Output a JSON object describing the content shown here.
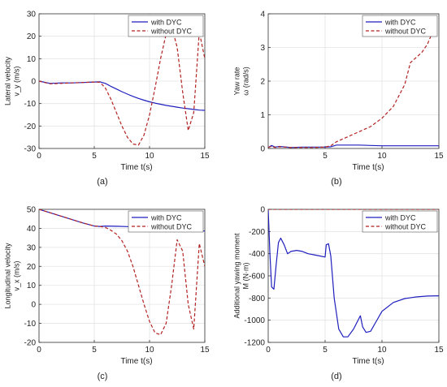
{
  "figure": {
    "colors": {
      "with": "#1f1fbf",
      "without": "#b22222",
      "axis": "#333333",
      "grid": "#e4e4e4"
    }
  },
  "chart_data": [
    {
      "id": "a",
      "type": "line",
      "caption": "(a)",
      "xlabel": "Time t(s)",
      "ylabel": [
        "Lateral velocity",
        "v_y (m/s)"
      ],
      "xlim": [
        0,
        15
      ],
      "ylim": [
        -30,
        30
      ],
      "xticks": [
        0,
        5,
        10,
        15
      ],
      "yticks": [
        -30,
        -20,
        -10,
        0,
        10,
        20,
        30
      ],
      "legend_position": "top-right",
      "grid": true,
      "series": [
        {
          "name": "with DYC",
          "style": "solid",
          "x": [
            0,
            1,
            2,
            3,
            4,
            5,
            5.5,
            6,
            6.5,
            7,
            7.5,
            8,
            8.5,
            9,
            9.5,
            10,
            10.5,
            11,
            11.5,
            12,
            12.5,
            13,
            13.5,
            14,
            14.5,
            15
          ],
          "y": [
            0,
            -1,
            -0.8,
            -0.8,
            -0.6,
            -0.4,
            -0.3,
            -1,
            -2.3,
            -3.5,
            -4.7,
            -5.8,
            -6.8,
            -7.7,
            -8.5,
            -9.2,
            -9.8,
            -10.3,
            -10.8,
            -11.2,
            -11.6,
            -12,
            -12.3,
            -12.6,
            -12.9,
            -13
          ]
        },
        {
          "name": "without DYC",
          "style": "dashed",
          "x": [
            0,
            1,
            2,
            3,
            4,
            5,
            5.5,
            6,
            6.5,
            7,
            7.5,
            8,
            8.5,
            9,
            9.5,
            10,
            10.5,
            11,
            11.5,
            12,
            12.5,
            13,
            13.5,
            14,
            14.5,
            15
          ],
          "y": [
            0,
            -1.2,
            -1,
            -0.8,
            -0.6,
            -0.4,
            -0.5,
            -3,
            -8,
            -14,
            -20,
            -25,
            -28,
            -28.5,
            -24,
            -15,
            -3,
            10,
            21,
            24.5,
            15,
            -5,
            -22,
            -14,
            22,
            10
          ]
        }
      ]
    },
    {
      "id": "b",
      "type": "line",
      "caption": "(b)",
      "xlabel": "Time t(s)",
      "ylabel": [
        "Yaw rate",
        "ω (rad/s)"
      ],
      "xlim": [
        0,
        15
      ],
      "ylim": [
        0,
        4
      ],
      "xticks": [
        5,
        10,
        15
      ],
      "yticks": [
        0,
        1,
        2,
        3,
        4
      ],
      "legend_position": "top-right",
      "grid": true,
      "series": [
        {
          "name": "with DYC",
          "style": "solid",
          "x": [
            0,
            0.3,
            0.6,
            1,
            2,
            3,
            4,
            5,
            5.5,
            6,
            7,
            8,
            9,
            10,
            11,
            12,
            13,
            14,
            15
          ],
          "y": [
            0.03,
            0.09,
            0.04,
            0.06,
            0.03,
            0.04,
            0.04,
            0.04,
            0.05,
            0.1,
            0.1,
            0.1,
            0.09,
            0.08,
            0.08,
            0.08,
            0.08,
            0.08,
            0.08
          ]
        },
        {
          "name": "without DYC",
          "style": "dashed",
          "x": [
            0,
            0.3,
            0.6,
            1,
            2,
            3,
            4,
            5,
            5.5,
            6,
            7,
            8,
            9,
            10,
            11,
            12,
            12.5,
            13,
            13.5,
            14,
            14.5,
            15
          ],
          "y": [
            0.03,
            0.07,
            0.03,
            0.05,
            0.03,
            0.03,
            0.03,
            0.04,
            0.08,
            0.2,
            0.35,
            0.5,
            0.65,
            0.9,
            1.25,
            1.9,
            2.55,
            2.7,
            2.85,
            3.1,
            3.5,
            3.62
          ]
        }
      ]
    },
    {
      "id": "c",
      "type": "line",
      "caption": "(c)",
      "xlabel": "Time t(s)",
      "ylabel": [
        "Longitudinal velocity",
        "v_x (m/s)"
      ],
      "xlim": [
        0,
        15
      ],
      "ylim": [
        -20,
        50
      ],
      "xticks": [
        0,
        5,
        10,
        15
      ],
      "yticks": [
        -20,
        -10,
        0,
        10,
        20,
        30,
        40,
        50
      ],
      "legend_position": "top-right",
      "grid": true,
      "series": [
        {
          "name": "with DYC",
          "style": "solid",
          "x": [
            0,
            1,
            2,
            3,
            4,
            5,
            5.5,
            6,
            7,
            8,
            9,
            10,
            11,
            12,
            13,
            14,
            15
          ],
          "y": [
            50,
            48.2,
            46.4,
            44.6,
            42.8,
            41.2,
            41,
            41.2,
            41.1,
            40.9,
            40.6,
            40.3,
            40,
            39.6,
            39.3,
            38.9,
            38.6
          ]
        },
        {
          "name": "without DYC",
          "style": "dashed",
          "x": [
            0,
            1,
            2,
            3,
            4,
            5,
            5.5,
            6,
            6.5,
            7,
            7.5,
            8,
            8.5,
            9,
            9.5,
            10,
            10.5,
            11,
            11.5,
            12,
            12.5,
            13,
            13.5,
            14,
            14.5,
            15
          ],
          "y": [
            50,
            48.2,
            46.4,
            44.6,
            42.8,
            41.2,
            41,
            40.5,
            39,
            37,
            33.5,
            28,
            20,
            10,
            0,
            -9,
            -15,
            -16,
            -10,
            10,
            34,
            28,
            0,
            -13,
            32,
            20
          ]
        }
      ]
    },
    {
      "id": "d",
      "type": "line",
      "caption": "(d)",
      "xlabel": "Time t(s)",
      "ylabel": [
        "Additional yawing moment",
        "M (N·m)"
      ],
      "xlim": [
        0,
        15
      ],
      "ylim": [
        -1200,
        0
      ],
      "xticks": [
        0,
        5,
        10,
        15
      ],
      "yticks": [
        -1200,
        -1000,
        -800,
        -600,
        -400,
        -200,
        0
      ],
      "legend_position": "top-right",
      "grid": true,
      "series": [
        {
          "name": "with DYC",
          "style": "solid",
          "x": [
            0,
            0.15,
            0.3,
            0.5,
            0.7,
            0.9,
            1.1,
            1.4,
            1.7,
            2,
            2.5,
            3,
            3.5,
            4,
            4.5,
            5,
            5.1,
            5.3,
            5.5,
            5.8,
            6.2,
            6.6,
            7,
            7.5,
            8,
            8.1,
            8.3,
            8.6,
            9,
            9.5,
            10,
            11,
            12,
            13,
            14,
            15
          ],
          "y": [
            0,
            -400,
            -700,
            -720,
            -500,
            -300,
            -260,
            -320,
            -400,
            -380,
            -370,
            -380,
            -400,
            -410,
            -420,
            -430,
            -320,
            -310,
            -420,
            -800,
            -1080,
            -1150,
            -1150,
            -1080,
            -980,
            -960,
            -1060,
            -1110,
            -1100,
            -1010,
            -920,
            -840,
            -805,
            -790,
            -782,
            -780
          ]
        },
        {
          "name": "without DYC",
          "style": "dashed",
          "x": [
            0,
            15
          ],
          "y": [
            0,
            0
          ]
        }
      ]
    }
  ]
}
